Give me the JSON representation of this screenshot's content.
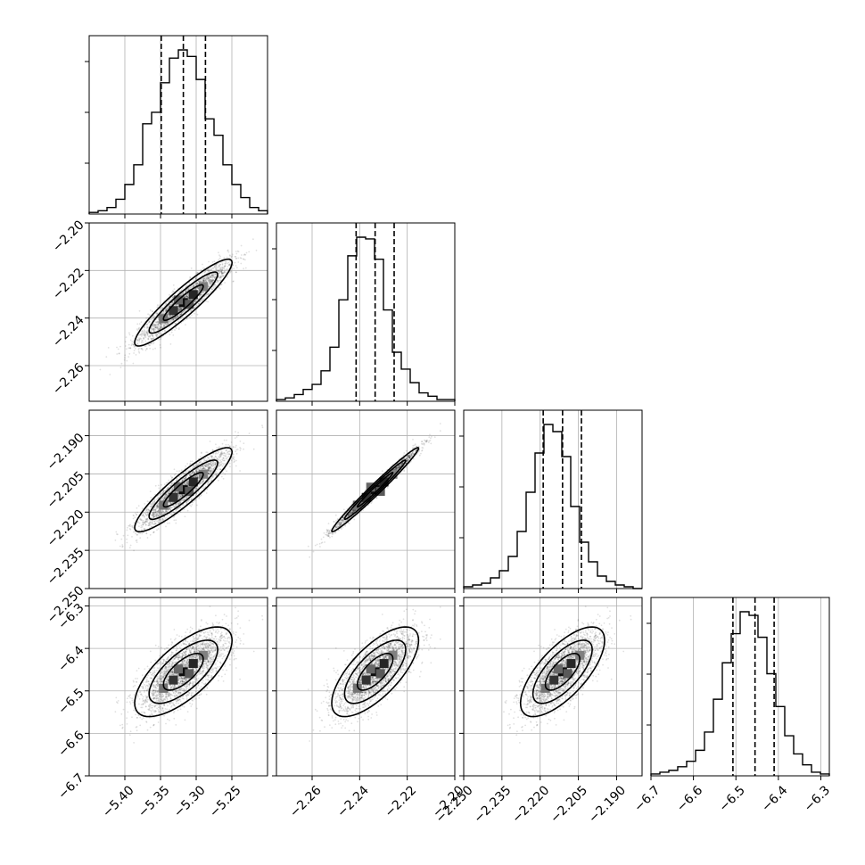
{
  "chart_data": {
    "type": "corner",
    "grid": true,
    "parameters": [
      {
        "range": [
          -5.45,
          -5.2
        ],
        "ticks": [
          -5.4,
          -5.35,
          -5.3,
          -5.25
        ],
        "tick_labels": [
          "−5.40",
          "−5.35",
          "−5.30",
          "−5.25"
        ],
        "quantiles": [
          -5.349,
          -5.318,
          -5.287
        ],
        "histogram": [
          1,
          2,
          4,
          9,
          18,
          30,
          55,
          62,
          80,
          95,
          100,
          96,
          82,
          58,
          48,
          30,
          18,
          10,
          4,
          2
        ]
      },
      {
        "range": [
          -2.275,
          -2.2
        ],
        "ticks": [
          -2.26,
          -2.24,
          -2.22,
          -2.2
        ],
        "tick_labels": [
          "−2.26",
          "−2.24",
          "−2.22",
          "−2.20"
        ],
        "quantiles": [
          -2.2415,
          -2.2335,
          -2.2255
        ],
        "histogram": [
          1,
          2,
          4,
          7,
          10,
          18,
          32,
          60,
          86,
          97,
          96,
          84,
          54,
          29,
          19,
          11,
          5,
          3,
          1,
          1
        ]
      },
      {
        "range": [
          -2.25,
          -2.18
        ],
        "ticks": [
          -2.25,
          -2.235,
          -2.22,
          -2.205,
          -2.19
        ],
        "tick_labels": [
          "−2.250",
          "−2.235",
          "−2.220",
          "−2.205",
          "−2.190"
        ],
        "quantiles": [
          -2.2188,
          -2.2112,
          -2.2038
        ],
        "histogram": [
          1,
          2,
          3,
          6,
          10,
          18,
          32,
          54,
          76,
          92,
          88,
          74,
          46,
          26,
          15,
          7,
          4,
          2,
          1,
          0
        ]
      },
      {
        "range": [
          -6.7,
          -6.28
        ],
        "ticks": [
          -6.7,
          -6.6,
          -6.5,
          -6.4,
          -6.3
        ],
        "tick_labels": [
          "−6.7",
          "−6.6",
          "−6.5",
          "−6.4",
          "−6.3"
        ],
        "quantiles": [
          -6.507,
          -6.455,
          -6.41
        ],
        "histogram": [
          1,
          2,
          3,
          5,
          8,
          14,
          24,
          42,
          62,
          78,
          90,
          88,
          76,
          56,
          38,
          22,
          12,
          6,
          2,
          1
        ]
      }
    ],
    "pairs": [
      {
        "x": 0,
        "y": 1,
        "correlation": 0.92,
        "sigma_x": 0.031,
        "sigma_y": 0.0083
      },
      {
        "x": 0,
        "y": 2,
        "correlation": 0.9,
        "sigma_x": 0.031,
        "sigma_y": 0.0075
      },
      {
        "x": 1,
        "y": 2,
        "correlation": 0.985,
        "sigma_x": 0.0083,
        "sigma_y": 0.0075
      },
      {
        "x": 0,
        "y": 3,
        "correlation": 0.7,
        "sigma_x": 0.031,
        "sigma_y": 0.048
      },
      {
        "x": 1,
        "y": 3,
        "correlation": 0.7,
        "sigma_x": 0.0083,
        "sigma_y": 0.048
      },
      {
        "x": 2,
        "y": 3,
        "correlation": 0.7,
        "sigma_x": 0.0075,
        "sigma_y": 0.048
      }
    ]
  }
}
